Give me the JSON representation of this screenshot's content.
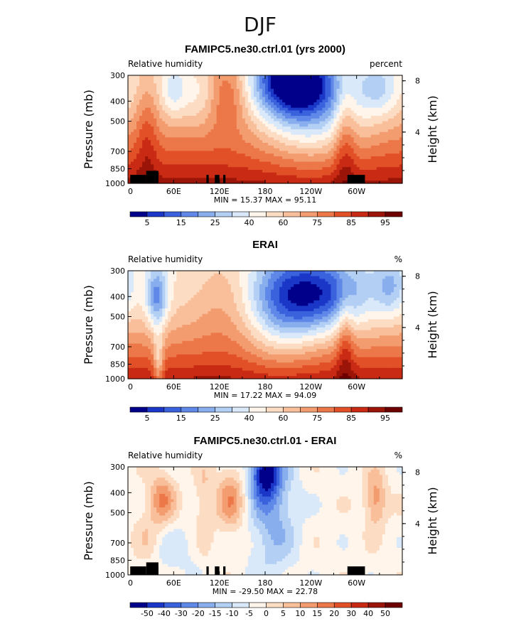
{
  "figure_title": "DJF",
  "chart_data": [
    {
      "type": "heatmap",
      "title": "FAMIPC5.ne30.ctrl.01 (yrs 2000)",
      "left_label": "Relative humidity",
      "right_label": "percent",
      "ylabel": "Pressure (mb)",
      "right_axis_label": "Height (km)",
      "xticks": [
        "0",
        "60E",
        "120E",
        "180",
        "120W",
        "60W"
      ],
      "yticks": [
        "300",
        "400",
        "500",
        "700",
        "850",
        "1000"
      ],
      "height_ticks": [
        "8",
        "4"
      ],
      "stats": "MIN =   15.37   MAX =   95.11",
      "colorbar_labels": [
        "5",
        "15",
        "25",
        "40",
        "60",
        "75",
        "85",
        "95"
      ],
      "colorbar_colors": [
        "#00008a",
        "#1a37c8",
        "#3a62dc",
        "#5f88e8",
        "#89aeee",
        "#b3cff4",
        "#d9e9fa",
        "#fff5ea",
        "#fcdcc3",
        "#f8bf9a",
        "#f39c6f",
        "#ec7748",
        "#e25028",
        "#c92a14",
        "#9a1508",
        "#6e0000"
      ],
      "x_range_deg": [
        0,
        360
      ],
      "y_range_mb": [
        300,
        1000
      ],
      "min": 15.37,
      "max": 95.11,
      "topography": true
    },
    {
      "type": "heatmap",
      "title": "ERAI",
      "left_label": "Relative humidity",
      "right_label": "%",
      "ylabel": "Pressure (mb)",
      "right_axis_label": "Height (km)",
      "xticks": [
        "0",
        "60E",
        "120E",
        "180",
        "120W",
        "60W"
      ],
      "yticks": [
        "300",
        "400",
        "500",
        "700",
        "850",
        "1000"
      ],
      "height_ticks": [
        "8",
        "4"
      ],
      "stats": "MIN =   17.22   MAX =   94.09",
      "colorbar_labels": [
        "5",
        "15",
        "25",
        "40",
        "60",
        "75",
        "85",
        "95"
      ],
      "colorbar_colors": [
        "#00008a",
        "#1a37c8",
        "#3a62dc",
        "#5f88e8",
        "#89aeee",
        "#b3cff4",
        "#d9e9fa",
        "#fff5ea",
        "#fcdcc3",
        "#f8bf9a",
        "#f39c6f",
        "#ec7748",
        "#e25028",
        "#c92a14",
        "#9a1508",
        "#6e0000"
      ],
      "x_range_deg": [
        0,
        360
      ],
      "y_range_mb": [
        300,
        1000
      ],
      "min": 17.22,
      "max": 94.09,
      "topography": false
    },
    {
      "type": "heatmap",
      "title": "FAMIPC5.ne30.ctrl.01 - ERAI",
      "left_label": "Relative humidity",
      "right_label": "%",
      "ylabel": "Pressure (mb)",
      "right_axis_label": "Height (km)",
      "xticks": [
        "0",
        "60E",
        "120E",
        "180",
        "120W",
        "60W"
      ],
      "yticks": [
        "300",
        "400",
        "500",
        "700",
        "850",
        "1000"
      ],
      "height_ticks": [
        "8",
        "4"
      ],
      "stats": "MIN =  -29.50   MAX =   22.78",
      "colorbar_labels": [
        "-50",
        "-40",
        "-30",
        "-20",
        "-15",
        "-10",
        "-5",
        "0",
        "5",
        "10",
        "15",
        "20",
        "30",
        "40",
        "50"
      ],
      "colorbar_colors": [
        "#00008a",
        "#1a37c8",
        "#3a62dc",
        "#5f88e8",
        "#89aeee",
        "#b3cff4",
        "#d9e9fa",
        "#fff5ea",
        "#fcdcc3",
        "#f8bf9a",
        "#f39c6f",
        "#ec7748",
        "#e25028",
        "#c92a14",
        "#9a1508",
        "#6e0000"
      ],
      "x_range_deg": [
        0,
        360
      ],
      "y_range_mb": [
        300,
        1000
      ],
      "min": -29.5,
      "max": 22.78,
      "topography": true
    }
  ]
}
